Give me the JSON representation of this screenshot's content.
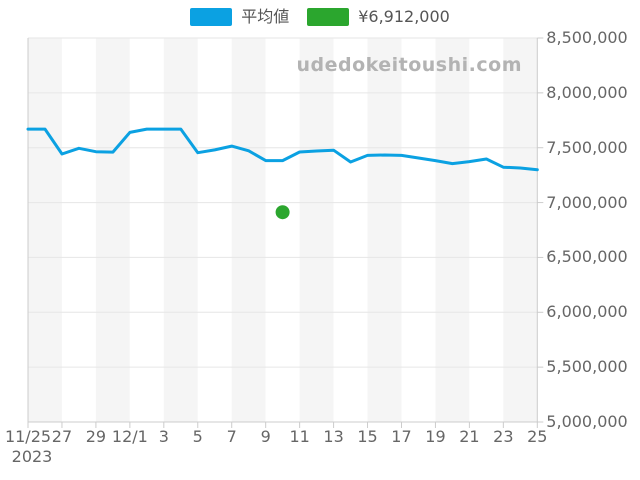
{
  "legend": {
    "items": [
      {
        "label": "平均値",
        "color": "#0ba1e2"
      },
      {
        "label": "¥6,912,000",
        "color": "#2ba62e"
      }
    ]
  },
  "watermark": "udedokeitoushi.com",
  "colors": {
    "band": "#f5f5f5",
    "band_alt": "#ffffff",
    "gridline": "#e6e6e6",
    "axis": "#cccccc",
    "tick_label": "#666666",
    "line": "#0ba1e2",
    "point": "#2ba62e"
  },
  "chart_data": {
    "type": "line",
    "title": "",
    "x": [
      "11/25",
      "11/26",
      "11/27",
      "11/28",
      "11/29",
      "11/30",
      "12/1",
      "12/2",
      "12/3",
      "12/4",
      "12/5",
      "12/6",
      "12/7",
      "12/8",
      "12/9",
      "12/10",
      "12/11",
      "12/12",
      "12/13",
      "12/14",
      "12/15",
      "12/16",
      "12/17",
      "12/18",
      "12/19",
      "12/20",
      "12/21",
      "12/22",
      "12/23",
      "12/24",
      "12/25"
    ],
    "x_axis_year": "2023",
    "xtick_labels": [
      "11/25",
      "27",
      "29",
      "12/1",
      "3",
      "5",
      "7",
      "9",
      "11",
      "13",
      "15",
      "17",
      "19",
      "21",
      "23",
      "25"
    ],
    "xtick_every": 2,
    "yticks": [
      5000000,
      5500000,
      6000000,
      6500000,
      7000000,
      7500000,
      8000000,
      8500000
    ],
    "ylim": [
      5000000,
      8500000
    ],
    "grid": "horizontal",
    "background_bands": "alternating vertical, one per 2-day interval, starting gray",
    "legend_position": "top-center",
    "series": [
      {
        "name": "平均値",
        "type": "line",
        "color": "#0ba1e2",
        "values": [
          7670000,
          7670000,
          7443000,
          7495000,
          7464000,
          7460000,
          7640000,
          7670000,
          7670000,
          7670000,
          7455000,
          7480000,
          7515000,
          7472000,
          7383000,
          7383000,
          7461000,
          7470000,
          7477000,
          7370000,
          7430000,
          7434000,
          7430000,
          7406000,
          7383000,
          7355000,
          7373000,
          7397000,
          7322000,
          7315000,
          7300000
        ]
      },
      {
        "name": "¥6,912,000",
        "type": "point",
        "color": "#2ba62e",
        "points": [
          {
            "x": "12/10",
            "value": 6912000
          }
        ]
      }
    ]
  }
}
